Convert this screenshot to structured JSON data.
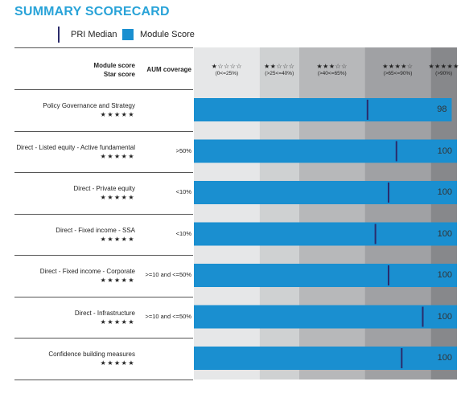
{
  "title": "SUMMARY SCORECARD",
  "legend": {
    "median_label": "PRI Median",
    "score_label": "Module Score"
  },
  "header": {
    "module_score": "Module score",
    "star_score": "Star score",
    "aum_coverage": "AUM coverage"
  },
  "colors": {
    "score_bar": "#1a8fd0",
    "median_line": "#2b2b6b",
    "title": "#29a3d8",
    "bands": [
      "#e6e7e8",
      "#cfd1d2",
      "#b7b8ba",
      "#a0a1a4",
      "#87888b"
    ]
  },
  "chart_data": {
    "type": "bar",
    "orientation": "horizontal",
    "title": "SUMMARY SCORECARD",
    "xlim": [
      0,
      100
    ],
    "bands": [
      {
        "stars": "★☆☆☆☆",
        "range": "(0<=25%)",
        "from": 0,
        "to": 25
      },
      {
        "stars": "★★☆☆☆",
        "range": "(>25<=40%)",
        "from": 25,
        "to": 40
      },
      {
        "stars": "★★★☆☆",
        "range": "(>40<=65%)",
        "from": 40,
        "to": 65
      },
      {
        "stars": "★★★★☆",
        "range": "(>65<=90%)",
        "from": 65,
        "to": 90
      },
      {
        "stars": "★★★★★",
        "range": "(>90%)",
        "from": 90,
        "to": 100
      }
    ],
    "rows": [
      {
        "name": "Policy Governance and Strategy",
        "stars": "★★★★★",
        "coverage": "",
        "score": 98,
        "median": 66
      },
      {
        "name": "Direct - Listed equity - Active fundamental",
        "stars": "★★★★★",
        "coverage": ">50%",
        "score": 100,
        "median": 77
      },
      {
        "name": "Direct - Private equity",
        "stars": "★★★★★",
        "coverage": "<10%",
        "score": 100,
        "median": 74
      },
      {
        "name": "Direct - Fixed income - SSA",
        "stars": "★★★★★",
        "coverage": "<10%",
        "score": 100,
        "median": 69
      },
      {
        "name": "Direct - Fixed income - Corporate",
        "stars": "★★★★★",
        "coverage": ">=10 and <=50%",
        "score": 100,
        "median": 74
      },
      {
        "name": "Direct - Infrastructure",
        "stars": "★★★★★",
        "coverage": ">=10 and <=50%",
        "score": 100,
        "median": 87
      },
      {
        "name": "Confidence building measures",
        "stars": "★★★★★",
        "coverage": "",
        "score": 100,
        "median": 79
      }
    ]
  }
}
